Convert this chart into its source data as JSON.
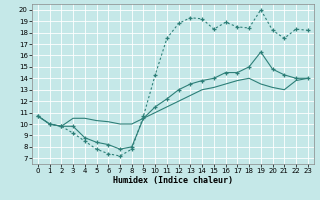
{
  "xlabel": "Humidex (Indice chaleur)",
  "bg_color": "#c5e8e8",
  "line_color": "#2d7f78",
  "grid_color": "#ffffff",
  "xlim": [
    -0.5,
    23.5
  ],
  "ylim": [
    6.5,
    20.5
  ],
  "xticks": [
    0,
    1,
    2,
    3,
    4,
    5,
    6,
    7,
    8,
    9,
    10,
    11,
    12,
    13,
    14,
    15,
    16,
    17,
    18,
    19,
    20,
    21,
    22,
    23
  ],
  "yticks": [
    7,
    8,
    9,
    10,
    11,
    12,
    13,
    14,
    15,
    16,
    17,
    18,
    19,
    20
  ],
  "line1_x": [
    0,
    1,
    2,
    3,
    4,
    5,
    6,
    7,
    8,
    9,
    10,
    11,
    12,
    13,
    14,
    15,
    16,
    17,
    18,
    19,
    20,
    21,
    22,
    23
  ],
  "line1_y": [
    10.7,
    10.0,
    9.8,
    9.2,
    8.5,
    7.8,
    7.4,
    7.2,
    7.8,
    10.7,
    14.3,
    17.5,
    18.8,
    19.3,
    19.2,
    18.3,
    18.9,
    18.5,
    18.4,
    20.0,
    18.2,
    17.5,
    18.3,
    18.2
  ],
  "line2_x": [
    0,
    1,
    2,
    3,
    4,
    5,
    6,
    7,
    8,
    9,
    10,
    11,
    12,
    13,
    14,
    15,
    16,
    17,
    18,
    19,
    20,
    21,
    22,
    23
  ],
  "line2_y": [
    10.7,
    10.0,
    9.8,
    9.8,
    8.8,
    8.4,
    8.2,
    7.8,
    8.0,
    10.5,
    11.5,
    12.2,
    13.0,
    13.5,
    13.8,
    14.0,
    14.5,
    14.5,
    15.0,
    16.3,
    14.8,
    14.3,
    14.0,
    14.0
  ],
  "line3_x": [
    0,
    1,
    2,
    3,
    4,
    5,
    6,
    7,
    8,
    9,
    10,
    11,
    12,
    13,
    14,
    15,
    16,
    17,
    18,
    19,
    20,
    21,
    22,
    23
  ],
  "line3_y": [
    10.7,
    10.0,
    9.8,
    10.5,
    10.5,
    10.3,
    10.2,
    10.0,
    10.0,
    10.5,
    11.0,
    11.5,
    12.0,
    12.5,
    13.0,
    13.2,
    13.5,
    13.8,
    14.0,
    13.5,
    13.2,
    13.0,
    13.8,
    14.0
  ]
}
